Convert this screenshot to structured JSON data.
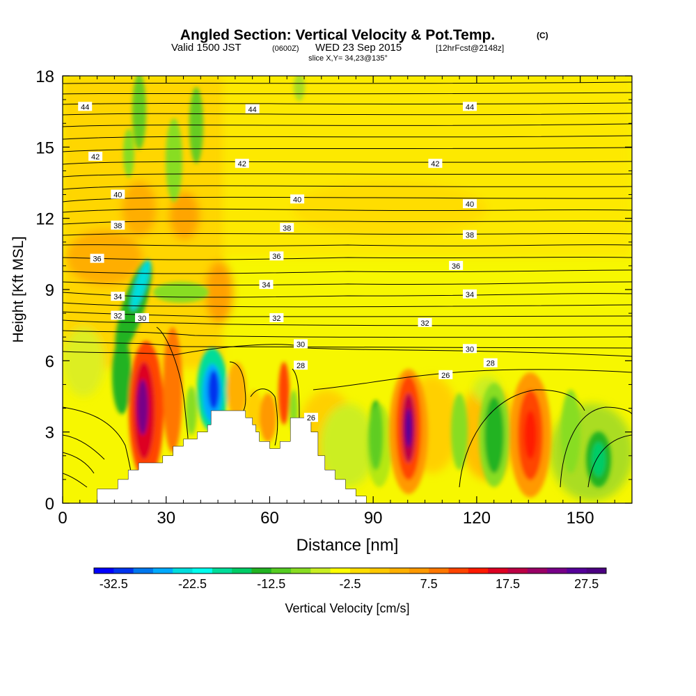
{
  "title": {
    "main": "Angled Section: Vertical Velocity & Pot.Temp.",
    "main_unit": "(C)",
    "line2_a": "Valid 1500 JST",
    "line2_b": "(0600Z)",
    "line2_c": "WED 23 Sep 2015",
    "line2_d": "[12hrFcst@2148z]",
    "line3": "slice X,Y= 34,23@135°"
  },
  "chart_data": {
    "type": "heatmap",
    "xlabel": "Distance [nm]",
    "ylabel": "Height [Kft MSL]",
    "xlim": [
      0,
      165
    ],
    "ylim": [
      0,
      18
    ],
    "x_ticks": [
      "0",
      "30",
      "60",
      "90",
      "120",
      "150"
    ],
    "y_ticks": [
      "0",
      "3",
      "6",
      "9",
      "12",
      "15",
      "18"
    ],
    "colorbar": {
      "label": "Vertical Velocity [cm/s]",
      "tick_labels": [
        "-32.5",
        "-22.5",
        "-12.5",
        "-2.5",
        "7.5",
        "17.5",
        "27.5"
      ],
      "bins": [
        -35,
        30
      ],
      "colors": [
        "#0000ff",
        "#0033ee",
        "#0077ee",
        "#00aaff",
        "#00dddd",
        "#00ffee",
        "#00dd99",
        "#00cc66",
        "#22b322",
        "#55cc22",
        "#88dd22",
        "#c8ee22",
        "#ffff00",
        "#ffdd00",
        "#ffc800",
        "#ffb000",
        "#ff9900",
        "#ff7700",
        "#ff4400",
        "#ff1a00",
        "#dd0022",
        "#bb0044",
        "#990066",
        "#770088",
        "#550099",
        "#4b0082"
      ]
    },
    "contour_labels": [
      {
        "text": "44",
        "x": 6.5,
        "y": 16.7
      },
      {
        "text": "44",
        "x": 55,
        "y": 16.6
      },
      {
        "text": "44",
        "x": 118,
        "y": 16.7
      },
      {
        "text": "42",
        "x": 9.5,
        "y": 14.6
      },
      {
        "text": "42",
        "x": 52,
        "y": 14.3
      },
      {
        "text": "42",
        "x": 108,
        "y": 14.3
      },
      {
        "text": "40",
        "x": 16,
        "y": 13.0
      },
      {
        "text": "40",
        "x": 68,
        "y": 12.8
      },
      {
        "text": "40",
        "x": 118,
        "y": 12.6
      },
      {
        "text": "38",
        "x": 16,
        "y": 11.7
      },
      {
        "text": "38",
        "x": 65,
        "y": 11.6
      },
      {
        "text": "38",
        "x": 118,
        "y": 11.3
      },
      {
        "text": "36",
        "x": 10,
        "y": 10.3
      },
      {
        "text": "36",
        "x": 62,
        "y": 10.4
      },
      {
        "text": "36",
        "x": 114,
        "y": 10.0
      },
      {
        "text": "34",
        "x": 16,
        "y": 8.7
      },
      {
        "text": "34",
        "x": 59,
        "y": 9.2
      },
      {
        "text": "34",
        "x": 118,
        "y": 8.8
      },
      {
        "text": "32",
        "x": 16,
        "y": 7.9
      },
      {
        "text": "32",
        "x": 62,
        "y": 7.8
      },
      {
        "text": "32",
        "x": 105,
        "y": 7.6
      },
      {
        "text": "30",
        "x": 23,
        "y": 7.8
      },
      {
        "text": "30",
        "x": 69,
        "y": 6.7
      },
      {
        "text": "30",
        "x": 118,
        "y": 6.5
      },
      {
        "text": "28",
        "x": 69,
        "y": 5.8
      },
      {
        "text": "28",
        "x": 124,
        "y": 5.9
      },
      {
        "text": "26",
        "x": 111,
        "y": 5.4
      },
      {
        "text": "26",
        "x": 72,
        "y": 3.6
      }
    ],
    "terrain_profile": [
      [
        10,
        0
      ],
      [
        10,
        0.6
      ],
      [
        16,
        0.6
      ],
      [
        16,
        1.0
      ],
      [
        19,
        1.0
      ],
      [
        19,
        1.4
      ],
      [
        22,
        1.4
      ],
      [
        22,
        1.7
      ],
      [
        29,
        1.7
      ],
      [
        29,
        2.0
      ],
      [
        32,
        2.0
      ],
      [
        32,
        2.4
      ],
      [
        35,
        2.4
      ],
      [
        35,
        2.7
      ],
      [
        39,
        2.7
      ],
      [
        39,
        3.0
      ],
      [
        42,
        3.0
      ],
      [
        42,
        3.3
      ],
      [
        43,
        3.3
      ],
      [
        43,
        3.9
      ],
      [
        53,
        3.9
      ],
      [
        53,
        3.6
      ],
      [
        55,
        3.6
      ],
      [
        55,
        3.3
      ],
      [
        56,
        3.3
      ],
      [
        56,
        3.0
      ],
      [
        57,
        3.0
      ],
      [
        57,
        2.6
      ],
      [
        60,
        2.6
      ],
      [
        60,
        2.3
      ],
      [
        63,
        2.3
      ],
      [
        63,
        2.6
      ],
      [
        66,
        2.6
      ],
      [
        66,
        3.6
      ],
      [
        72,
        3.6
      ],
      [
        72,
        3.0
      ],
      [
        74,
        3.0
      ],
      [
        74,
        2.0
      ],
      [
        76,
        2.0
      ],
      [
        76,
        1.4
      ],
      [
        79,
        1.4
      ],
      [
        79,
        1.0
      ],
      [
        82,
        1.0
      ],
      [
        82,
        0.6
      ],
      [
        85,
        0.6
      ],
      [
        85,
        0.3
      ],
      [
        88,
        0.3
      ],
      [
        88,
        0
      ]
    ]
  }
}
